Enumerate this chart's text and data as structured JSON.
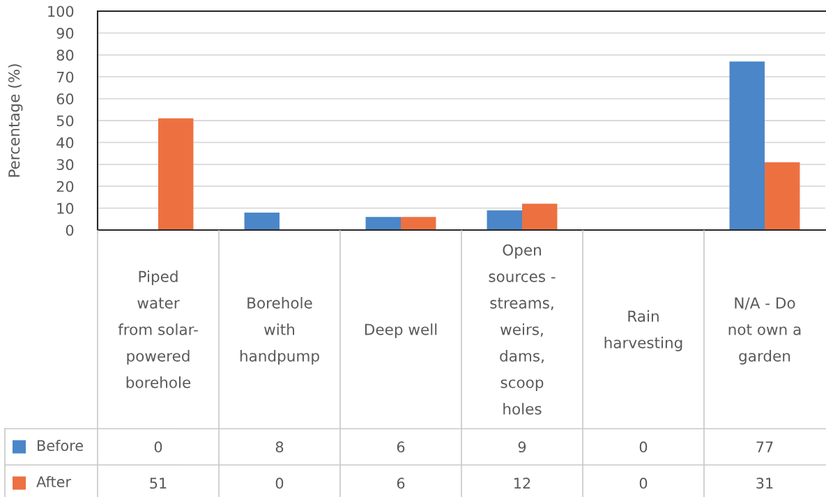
{
  "chart_data": {
    "type": "bar",
    "ylabel": "Percentage (%)",
    "categories": [
      "Piped water from solar-powered borehole",
      "Borehole with handpump",
      "Deep well",
      "Open sources - streams, weirs, dams, scoop holes",
      "Rain harvesting",
      "N/A - Do not own a garden"
    ],
    "series": [
      {
        "name": "Before",
        "color": "#4a86c8",
        "values": [
          0,
          8,
          6,
          9,
          0,
          77
        ]
      },
      {
        "name": "After",
        "color": "#ed7140",
        "values": [
          51,
          0,
          6,
          12,
          0,
          31
        ]
      }
    ],
    "ylim": [
      0,
      100
    ],
    "yticks": [
      0,
      10,
      20,
      30,
      40,
      50,
      60,
      70,
      80,
      90,
      100
    ],
    "grid": "y",
    "legend": "bottom",
    "data_labels": true
  }
}
